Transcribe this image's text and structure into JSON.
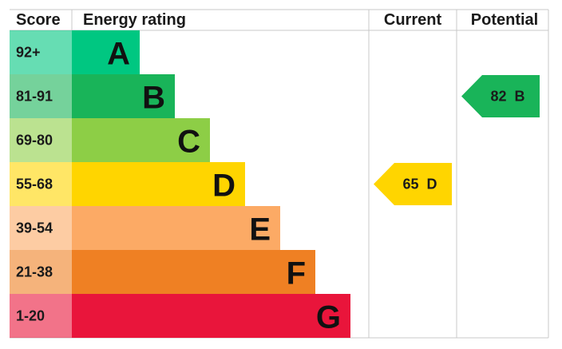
{
  "header": {
    "score": "Score",
    "rating": "Energy rating",
    "current": "Current",
    "potential": "Potential"
  },
  "bands": [
    {
      "score": "92+",
      "letter": "A",
      "color": "#00c781"
    },
    {
      "score": "81-91",
      "letter": "B",
      "color": "#19b459"
    },
    {
      "score": "69-80",
      "letter": "C",
      "color": "#8dce46"
    },
    {
      "score": "55-68",
      "letter": "D",
      "color": "#ffd500"
    },
    {
      "score": "39-54",
      "letter": "E",
      "color": "#fcaa65"
    },
    {
      "score": "21-38",
      "letter": "F",
      "color": "#ef8023"
    },
    {
      "score": "1-20",
      "letter": "G",
      "color": "#e9153b"
    }
  ],
  "current": {
    "value": 65,
    "letter": "D"
  },
  "potential": {
    "value": 82,
    "letter": "B"
  }
}
